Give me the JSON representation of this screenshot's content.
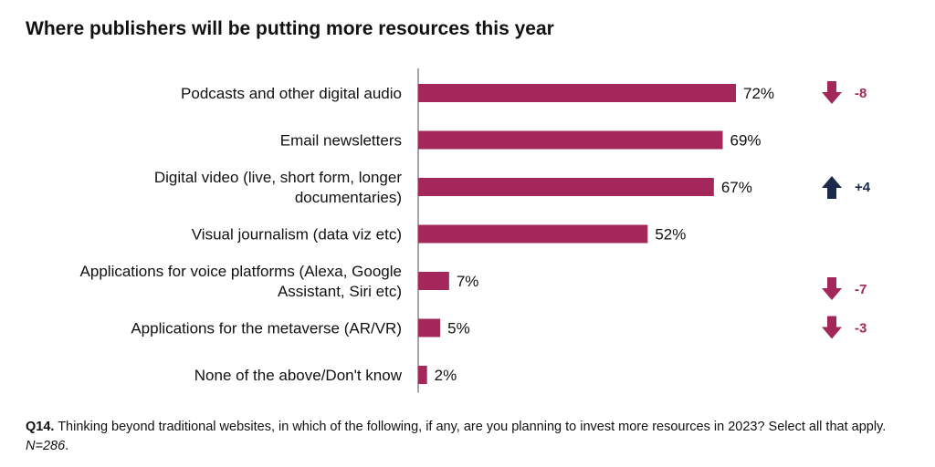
{
  "title": "Where publishers will be putting more resources this year",
  "chart_data": {
    "type": "bar",
    "orientation": "horizontal",
    "categories": [
      [
        "Podcasts and other digital audio"
      ],
      [
        "Email newsletters"
      ],
      [
        "Digital video (live, short form, longer",
        "documentaries)"
      ],
      [
        "Visual journalism (data viz etc)"
      ],
      [
        "Applications for voice platforms (Alexa, Google",
        "Assistant, Siri etc)"
      ],
      [
        "Applications for the metaverse (AR/VR)"
      ],
      [
        "None of the above/Don't know"
      ]
    ],
    "values": [
      72,
      69,
      67,
      52,
      7,
      5,
      2
    ],
    "value_labels": [
      "72%",
      "69%",
      "67%",
      "52%",
      "7%",
      "5%",
      "2%"
    ],
    "changes": [
      {
        "row": 0,
        "label": "-8",
        "direction": "down"
      },
      {
        "row": 2,
        "label": "+4",
        "direction": "up"
      },
      {
        "row": 4,
        "label": "-7",
        "direction": "down"
      },
      {
        "row": 5,
        "label": "-3",
        "direction": "down"
      }
    ],
    "bar_color": "#a3275a",
    "up_color": "#1b2a4a",
    "down_color": "#a3275a",
    "axis_color": "#888888",
    "xlim": [
      0,
      100
    ],
    "grid": false
  },
  "footnote": {
    "question_id": "Q14.",
    "question_text": " Thinking beyond traditional websites, in which of the following, if any, are you planning to invest more resources in 2023? Select all that apply. ",
    "sample": "N=286",
    "end": "."
  }
}
